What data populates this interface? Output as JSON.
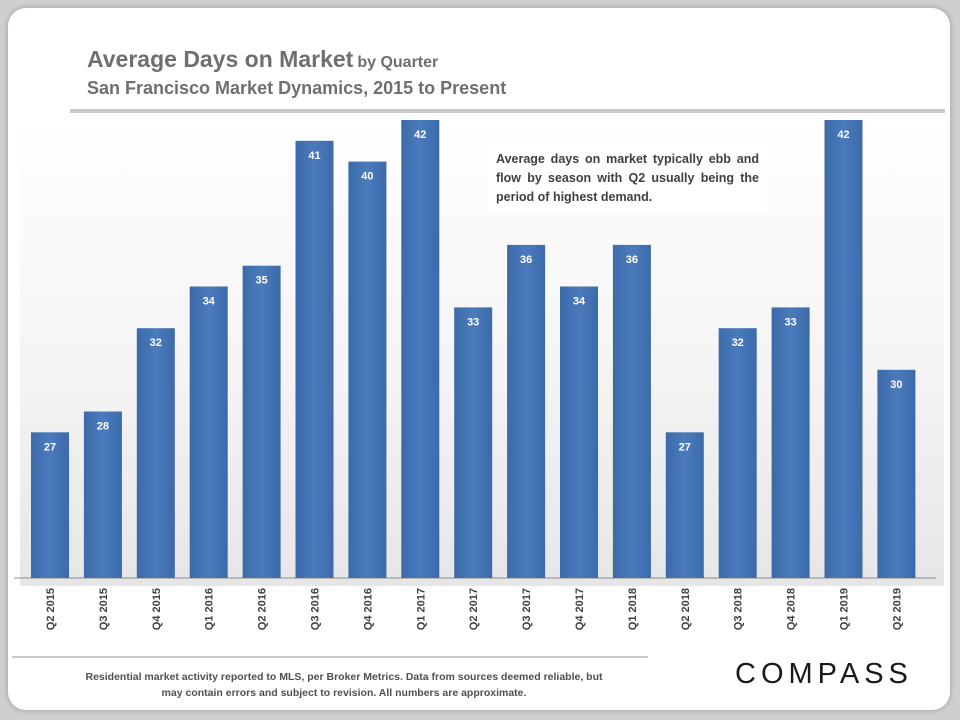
{
  "header": {
    "title": "Average Days on Market",
    "title_suffix": "by Quarter",
    "subtitle": "San Francisco Market Dynamics, 2015 to Present"
  },
  "annotation": "Average days on market typically ebb and flow by season with Q2 usually being the period of highest demand.",
  "footer": {
    "note": "Residential market activity reported to MLS, per Broker Metrics. Data from sources deemed reliable, but may contain errors and subject to revision. All numbers are approximate.",
    "logo": "COMPASS"
  },
  "colors": {
    "bar": "#4b7bbd",
    "bar_dark": "#3c6aa9",
    "text": "#404040",
    "title": "#6f6f6f"
  },
  "chart_data": {
    "type": "bar",
    "title": "Average Days on Market by Quarter",
    "subtitle": "San Francisco Market Dynamics, 2015 to Present",
    "categories": [
      "Q2 2015",
      "Q3 2015",
      "Q4 2015",
      "Q1 2016",
      "Q2 2016",
      "Q3 2016",
      "Q4 2016",
      "Q1 2017",
      "Q2 2017",
      "Q3 2017",
      "Q4 2017",
      "Q1 2018",
      "Q2 2018",
      "Q3 2018",
      "Q4 2018",
      "Q1 2019",
      "Q2 2019"
    ],
    "values": [
      27,
      28,
      32,
      34,
      35,
      41,
      40,
      42,
      33,
      36,
      34,
      36,
      27,
      32,
      33,
      42,
      30
    ],
    "data_labels": true,
    "ylim": [
      20,
      42
    ],
    "grid": false,
    "legend": "none",
    "xlabel": "",
    "ylabel": ""
  }
}
